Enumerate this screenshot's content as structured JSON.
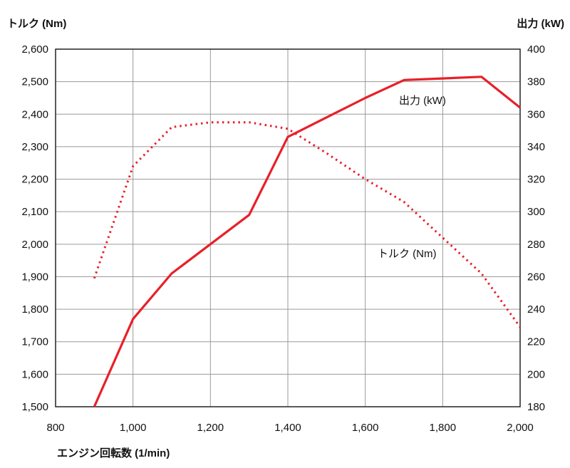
{
  "chart_data": {
    "type": "line",
    "y_left_title": "トルク (Nm)",
    "y_right_title": "出力 (kW)",
    "x_title": "エンジン回転数 (1/min)",
    "x_ticks": [
      800,
      1000,
      1200,
      1400,
      1600,
      1800,
      2000
    ],
    "x_tick_labels": [
      "800",
      "1,000",
      "1,200",
      "1,400",
      "1,600",
      "1,800",
      "2,000"
    ],
    "y_left_ticks": [
      1500,
      1600,
      1700,
      1800,
      1900,
      2000,
      2100,
      2200,
      2300,
      2400,
      2500,
      2600
    ],
    "y_left_tick_labels": [
      "1,500",
      "1,600",
      "1,700",
      "1,800",
      "1,900",
      "2,000",
      "2,100",
      "2,200",
      "2,300",
      "2,400",
      "2,500",
      "2,600"
    ],
    "y_right_ticks": [
      180,
      200,
      220,
      240,
      260,
      280,
      300,
      320,
      340,
      360,
      380,
      400
    ],
    "y_right_tick_labels": [
      "180",
      "200",
      "220",
      "240",
      "260",
      "280",
      "300",
      "320",
      "340",
      "360",
      "380",
      "400"
    ],
    "xlim": [
      800,
      2000
    ],
    "ylim_left": [
      1500,
      2600
    ],
    "ylim_right": [
      180,
      400
    ],
    "grid": true,
    "colors": {
      "series": "#e8202a",
      "grid": "#9a9a9a",
      "frame": "#222222"
    },
    "series": [
      {
        "name": "出力 (kW)",
        "axis": "right",
        "style": "solid",
        "x": [
          900,
          1000,
          1100,
          1200,
          1300,
          1400,
          1500,
          1600,
          1700,
          1800,
          1900,
          2000
        ],
        "y": [
          180,
          234,
          262,
          280,
          298,
          346,
          358,
          370,
          381,
          382,
          383,
          364
        ]
      },
      {
        "name": "トルク (Nm)",
        "axis": "left",
        "style": "dotted",
        "x": [
          900,
          1000,
          1100,
          1200,
          1300,
          1400,
          1500,
          1600,
          1700,
          1800,
          1900,
          2000
        ],
        "y": [
          1895,
          2240,
          2360,
          2375,
          2375,
          2355,
          2280,
          2200,
          2130,
          2020,
          1910,
          1745
        ]
      }
    ]
  }
}
